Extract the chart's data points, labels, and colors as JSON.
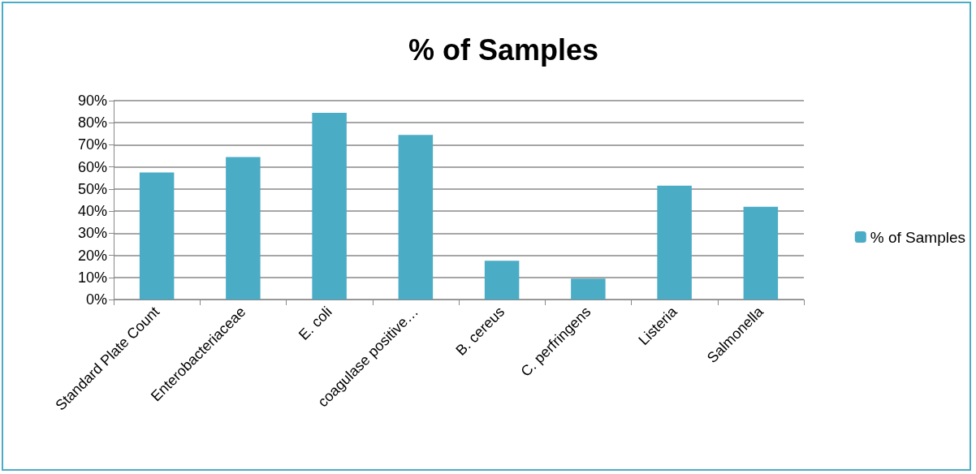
{
  "chart_data": {
    "type": "bar",
    "title": "% of Samples",
    "categories": [
      "Standard Plate Count",
      "Enterobacteriaceae",
      "E. coli",
      "coagulase positive…",
      "B. cereus",
      "C. perfringens",
      "Listeria",
      "Salmonella"
    ],
    "series": [
      {
        "name": "% of Samples",
        "color": "#4bacc6",
        "values": [
          57.5,
          64.5,
          84.5,
          74.5,
          17.5,
          9.5,
          51.5,
          42
        ]
      }
    ],
    "ylim": [
      0,
      90
    ],
    "yticks": [
      {
        "value": 0,
        "label": "0%"
      },
      {
        "value": 10,
        "label": "10%"
      },
      {
        "value": 20,
        "label": "20%"
      },
      {
        "value": 30,
        "label": "30%"
      },
      {
        "value": 40,
        "label": "40%"
      },
      {
        "value": 50,
        "label": "50%"
      },
      {
        "value": 60,
        "label": "60%"
      },
      {
        "value": 70,
        "label": "70%"
      },
      {
        "value": 80,
        "label": "80%"
      },
      {
        "value": 90,
        "label": "90%"
      }
    ],
    "grid": "y",
    "legend": "right"
  }
}
